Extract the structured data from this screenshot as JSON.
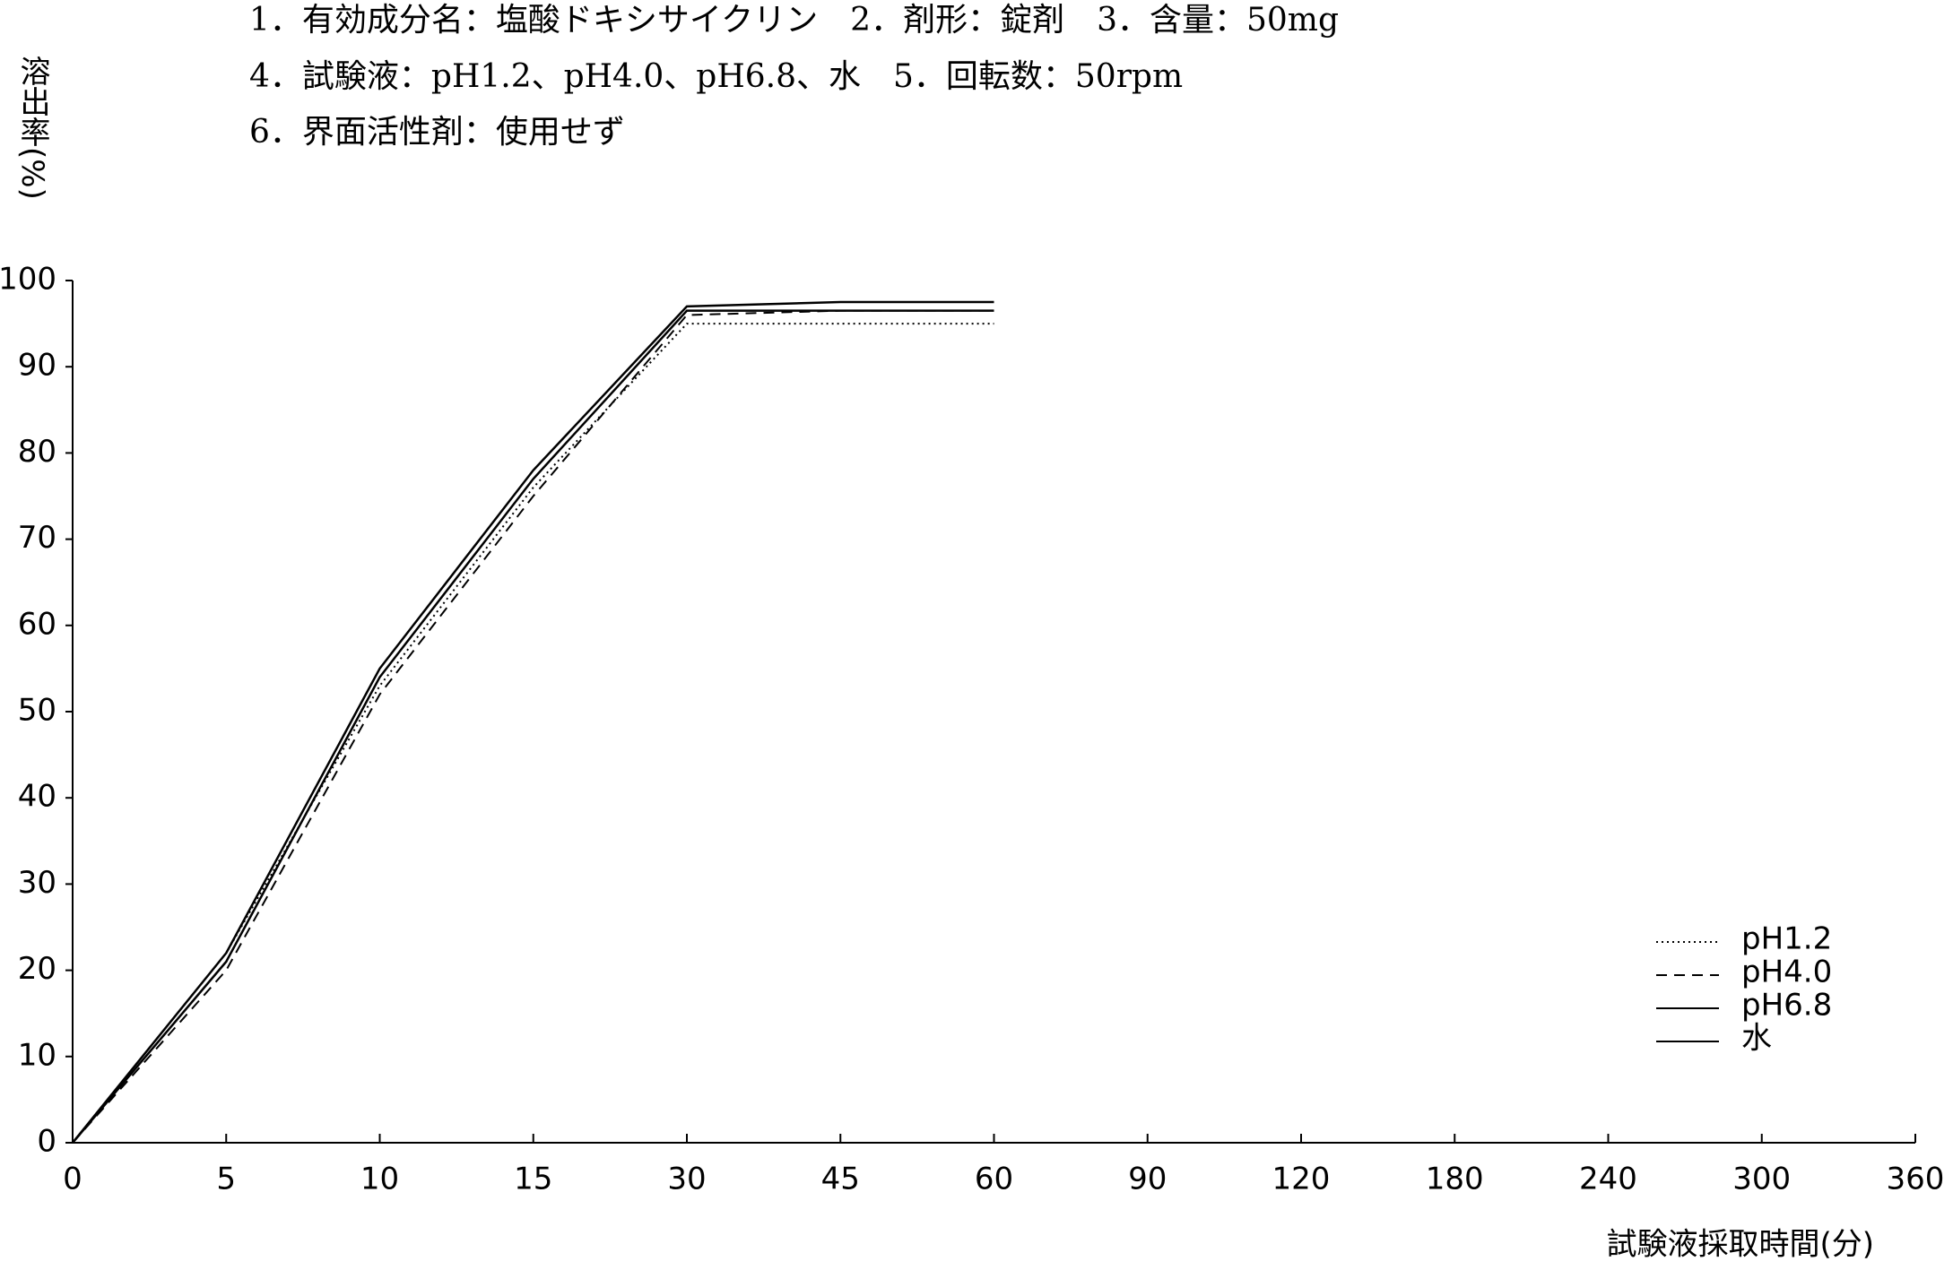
{
  "chart_data": {
    "type": "line",
    "title_lines": [
      "1．有効成分名：塩酸ドキシサイクリン　2．剤形：錠剤　3．含量：50mg",
      "4．試験液：pH1.2、pH4.0、pH6.8、水　5．回転数：50rpm",
      "6．界面活性剤：使用せず"
    ],
    "y_label": "溶出率(%)",
    "x_label": "試験液採取時間(分)",
    "categories": [
      "0",
      "5",
      "10",
      "15",
      "30",
      "45",
      "60",
      "90",
      "120",
      "180",
      "240",
      "300",
      "360"
    ],
    "series": [
      {
        "name": "pH1.2",
        "color": "#000000",
        "style": "dotted",
        "values": [
          0,
          22,
          53,
          76,
          95,
          95,
          95,
          null,
          null,
          null,
          null,
          null,
          null
        ]
      },
      {
        "name": "pH4.0",
        "color": "#000000",
        "style": "dashed",
        "values": [
          0,
          20,
          52,
          75,
          96,
          96.5,
          96.5,
          null,
          null,
          null,
          null,
          null,
          null
        ]
      },
      {
        "name": "pH6.8",
        "color": "#000000",
        "style": "solid",
        "values": [
          0,
          21,
          54,
          77,
          96.5,
          96.5,
          96.5,
          null,
          null,
          null,
          null,
          null,
          null
        ]
      },
      {
        "name": "水",
        "color": "#000000",
        "style": "solid",
        "values": [
          0,
          22,
          55,
          78,
          97,
          97.5,
          97.5,
          null,
          null,
          null,
          null,
          null,
          null
        ]
      }
    ],
    "ylim": [
      0,
      100
    ],
    "yticks": [
      0,
      10,
      20,
      30,
      40,
      50,
      60,
      70,
      80,
      90,
      100
    ],
    "grid": false,
    "legend": "lower-right"
  }
}
